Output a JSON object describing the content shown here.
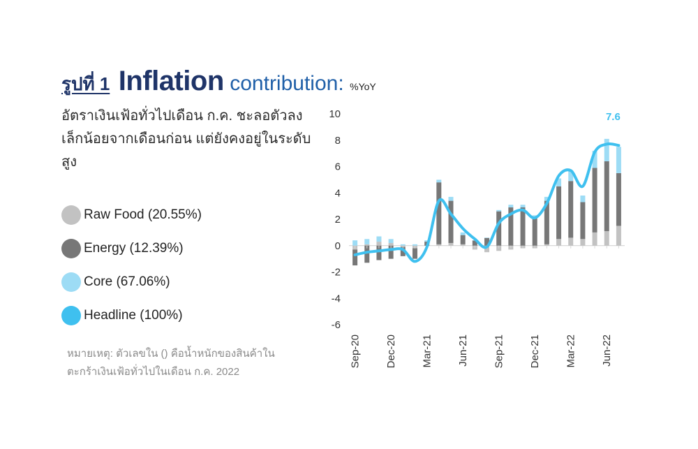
{
  "header": {
    "figure_no": "รูปที่ 1",
    "title": "Inflation",
    "title_sub": "contribution:",
    "unit": "%YoY"
  },
  "subtitle": "อัตราเงินเฟ้อทั่วไปเดือน ก.ค. ชะลอตัวลงเล็กน้อยจากเดือนก่อน แต่ยังคงอยู่ในระดับสูง",
  "legend": [
    {
      "label": "Raw Food (20.55%)",
      "color": "#c2c2c2"
    },
    {
      "label": "Energy (12.39%)",
      "color": "#777777"
    },
    {
      "label": "Core (67.06%)",
      "color": "#9ddcf5"
    },
    {
      "label": "Headline (100%)",
      "color": "#3fc0ef"
    }
  ],
  "note": "หมายเหตุ: ตัวเลขใน () คือน้ำหนักของสินค้าในตะกร้าเงินเฟ้อทั่วไปในเดือน ก.ค. 2022",
  "chart_data": {
    "type": "bar",
    "stacked": true,
    "ylim": [
      -6,
      10
    ],
    "yticks": [
      "10",
      "8",
      "6",
      "4",
      "2",
      "0",
      "-2",
      "-4",
      "-6"
    ],
    "ytick_values": [
      10,
      8,
      6,
      4,
      2,
      0,
      -2,
      -4,
      -6
    ],
    "categories": [
      "Sep-20",
      "Oct-20",
      "Nov-20",
      "Dec-20",
      "Jan-21",
      "Feb-21",
      "Mar-21",
      "Apr-21",
      "May-21",
      "Jun-21",
      "Jul-21",
      "Aug-21",
      "Sep-21",
      "Oct-21",
      "Nov-21",
      "Dec-21",
      "Jan-22",
      "Feb-22",
      "Mar-22",
      "Apr-22",
      "May-22",
      "Jun-22",
      "Jul-22"
    ],
    "xtick_labels": [
      "Sep-20",
      "Dec-20",
      "Mar-21",
      "Jun-21",
      "Sep-21",
      "Dec-21",
      "Mar-22",
      "Jun-22"
    ],
    "series": [
      {
        "name": "Raw Food (20.55%)",
        "color": "#c2c2c2",
        "values": [
          -0.3,
          0.1,
          0.3,
          0.2,
          -0.1,
          -0.2,
          0.0,
          0.1,
          0.2,
          0.1,
          -0.3,
          -0.5,
          -0.4,
          -0.3,
          -0.2,
          -0.2,
          0.1,
          0.5,
          0.6,
          0.5,
          1.0,
          1.1,
          1.5
        ]
      },
      {
        "name": "Energy (12.39%)",
        "color": "#777777",
        "values": [
          -1.2,
          -1.3,
          -1.1,
          -1.0,
          -0.7,
          -0.8,
          0.3,
          4.7,
          3.2,
          0.7,
          0.4,
          0.6,
          2.6,
          2.9,
          2.9,
          2.1,
          3.3,
          4.0,
          4.3,
          2.8,
          4.9,
          5.3,
          4.0
        ]
      },
      {
        "name": "Core (67.06%)",
        "color": "#9ddcf5",
        "values": [
          0.4,
          0.4,
          0.4,
          0.3,
          0.1,
          0.1,
          0.1,
          0.2,
          0.3,
          0.2,
          0.0,
          0.0,
          0.1,
          0.2,
          0.2,
          0.2,
          0.3,
          0.6,
          0.8,
          0.5,
          1.3,
          1.7,
          2.0
        ]
      }
    ],
    "headline": {
      "name": "Headline (100%)",
      "color": "#3fc0ef",
      "values": [
        -0.7,
        -0.5,
        -0.4,
        -0.3,
        -0.3,
        -1.2,
        -0.1,
        3.4,
        2.4,
        1.3,
        0.5,
        -0.1,
        1.7,
        2.4,
        2.7,
        2.1,
        3.2,
        5.3,
        5.7,
        4.5,
        7.1,
        7.7,
        7.6
      ]
    },
    "annotation": "7.6"
  }
}
